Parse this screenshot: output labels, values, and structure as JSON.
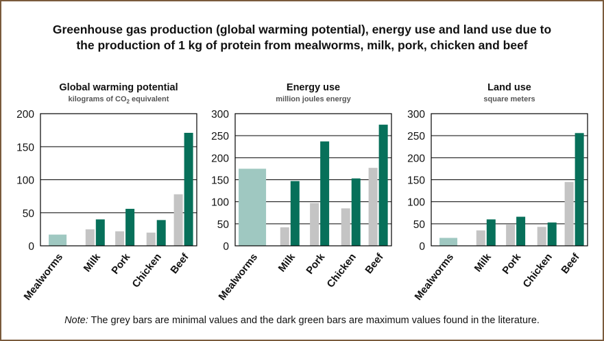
{
  "title_line1": "Greenhouse gas production (global warming potential), energy use and land use due to",
  "title_line2": "the production of 1 kg of protein from mealworms, milk, pork, chicken and beef",
  "note_prefix": "Note:",
  "note_text": " The grey bars are minimal values and the dark green bars are maximum values found in the literature.",
  "colors": {
    "mealworm": "#9fc8c1",
    "min": "#c4c4c4",
    "max": "#07705a",
    "frame": "#7a5a3c"
  },
  "chart_data": [
    {
      "type": "bar",
      "title": "Global warming potential",
      "subtitle_main": "kilograms of CO",
      "subtitle_sub": "2",
      "subtitle_tail": " equivalent",
      "categories": [
        "Mealworms",
        "Milk",
        "Pork",
        "Chicken",
        "Beef"
      ],
      "ylim": [
        0,
        200
      ],
      "yticks": [
        0,
        50,
        100,
        150,
        200
      ],
      "mealworm_value": 17,
      "series": [
        {
          "name": "Minimum",
          "values": [
            null,
            25,
            22,
            20,
            78
          ]
        },
        {
          "name": "Maximum",
          "values": [
            null,
            40,
            56,
            39,
            171
          ]
        }
      ],
      "grid": true
    },
    {
      "type": "bar",
      "title": "Energy use",
      "subtitle_main": "million joules energy",
      "subtitle_sub": "",
      "subtitle_tail": "",
      "categories": [
        "Mealworms",
        "Milk",
        "Pork",
        "Chicken",
        "Beef"
      ],
      "ylim": [
        0,
        300
      ],
      "yticks": [
        0,
        50,
        100,
        150,
        200,
        250,
        300
      ],
      "mealworm_value": 175,
      "series": [
        {
          "name": "Minimum",
          "values": [
            null,
            42,
            97,
            85,
            177
          ]
        },
        {
          "name": "Maximum",
          "values": [
            null,
            147,
            237,
            153,
            275
          ]
        }
      ],
      "grid": true
    },
    {
      "type": "bar",
      "title": "Land use",
      "subtitle_main": "square meters",
      "subtitle_sub": "",
      "subtitle_tail": "",
      "categories": [
        "Mealworms",
        "Milk",
        "Pork",
        "Chicken",
        "Beef"
      ],
      "ylim": [
        0,
        300
      ],
      "yticks": [
        0,
        50,
        100,
        150,
        200,
        250,
        300
      ],
      "mealworm_value": 18,
      "series": [
        {
          "name": "Minimum",
          "values": [
            null,
            35,
            48,
            43,
            145
          ]
        },
        {
          "name": "Maximum",
          "values": [
            null,
            60,
            66,
            53,
            256
          ]
        }
      ],
      "grid": true
    }
  ]
}
